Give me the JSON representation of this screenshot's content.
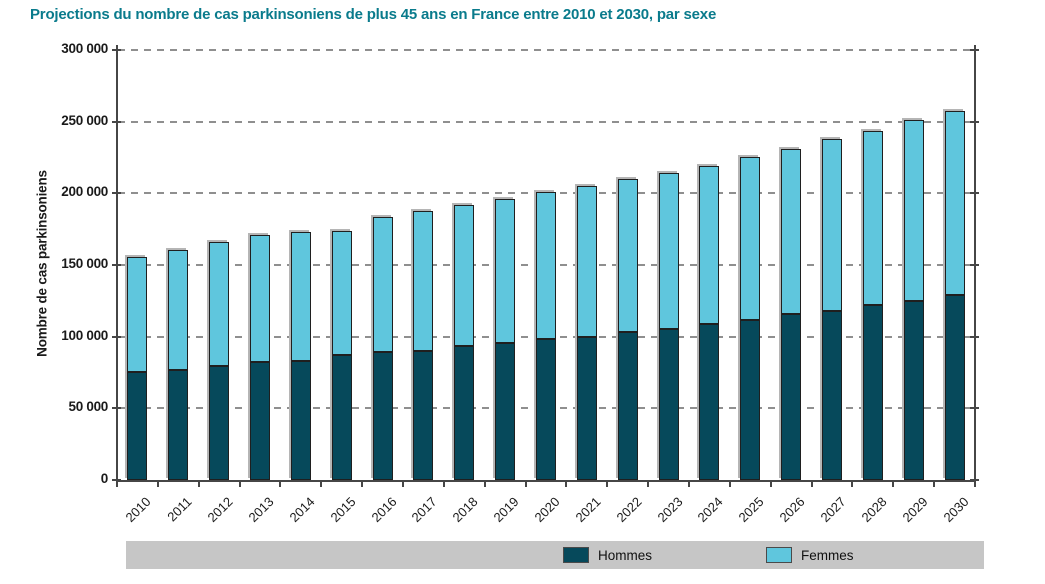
{
  "title": "Projections du nombre de cas parkinsoniens de plus 45 ans en France entre 2010 et 2030, par sexe",
  "colors": {
    "title": "#0A7B8C",
    "hommes": "#06495B",
    "femmes": "#5FC6DD",
    "legend_background": "#C6C6C6",
    "axis": "#464646",
    "gridline": "#8F8F8F"
  },
  "chart_data": {
    "type": "bar",
    "stacked": true,
    "title": "Projections du nombre de cas parkinsoniens de plus 45 ans en France entre 2010 et 2030, par sexe",
    "xlabel": "",
    "ylabel": "Nombre de cas parkinsoniens",
    "ylim": [
      0,
      300000
    ],
    "grid": "horizontal-dashed",
    "legend_position": "bottom",
    "categories": [
      "2010",
      "2011",
      "2012",
      "2013",
      "2014",
      "2015",
      "2016",
      "2017",
      "2018",
      "2019",
      "2020",
      "2021",
      "2022",
      "2023",
      "2024",
      "2025",
      "2026",
      "2027",
      "2028",
      "2029",
      "2030"
    ],
    "yticks": [
      {
        "value": 0,
        "label": "0"
      },
      {
        "value": 50000,
        "label": "50 000"
      },
      {
        "value": 100000,
        "label": "100 000"
      },
      {
        "value": 150000,
        "label": "150 000"
      },
      {
        "value": 200000,
        "label": "200 000"
      },
      {
        "value": 250000,
        "label": "250 000"
      },
      {
        "value": 300000,
        "label": "300 000"
      }
    ],
    "series": [
      {
        "name": "Hommes",
        "color": "#06495B",
        "values": [
          75000,
          77000,
          79500,
          82000,
          83000,
          87500,
          89500,
          90000,
          93500,
          95500,
          98500,
          99500,
          103000,
          105500,
          109000,
          111500,
          115500,
          118000,
          122000,
          125000,
          129000
        ]
      },
      {
        "name": "Femmes",
        "color": "#5FC6DD",
        "values": [
          80500,
          83500,
          86500,
          89000,
          90000,
          86500,
          94000,
          98000,
          98500,
          100500,
          102500,
          105500,
          107000,
          108500,
          110000,
          114000,
          115500,
          120000,
          121500,
          126000,
          128500
        ]
      }
    ],
    "totals": [
      155500,
      160500,
      166000,
      171000,
      173000,
      174000,
      183500,
      188000,
      192000,
      196000,
      201000,
      205000,
      210000,
      214000,
      219000,
      225500,
      231000,
      238000,
      243500,
      251000,
      257500
    ]
  },
  "legend": {
    "items": [
      {
        "label": "Hommes",
        "color": "#06495B"
      },
      {
        "label": "Femmes",
        "color": "#5FC6DD"
      }
    ]
  }
}
